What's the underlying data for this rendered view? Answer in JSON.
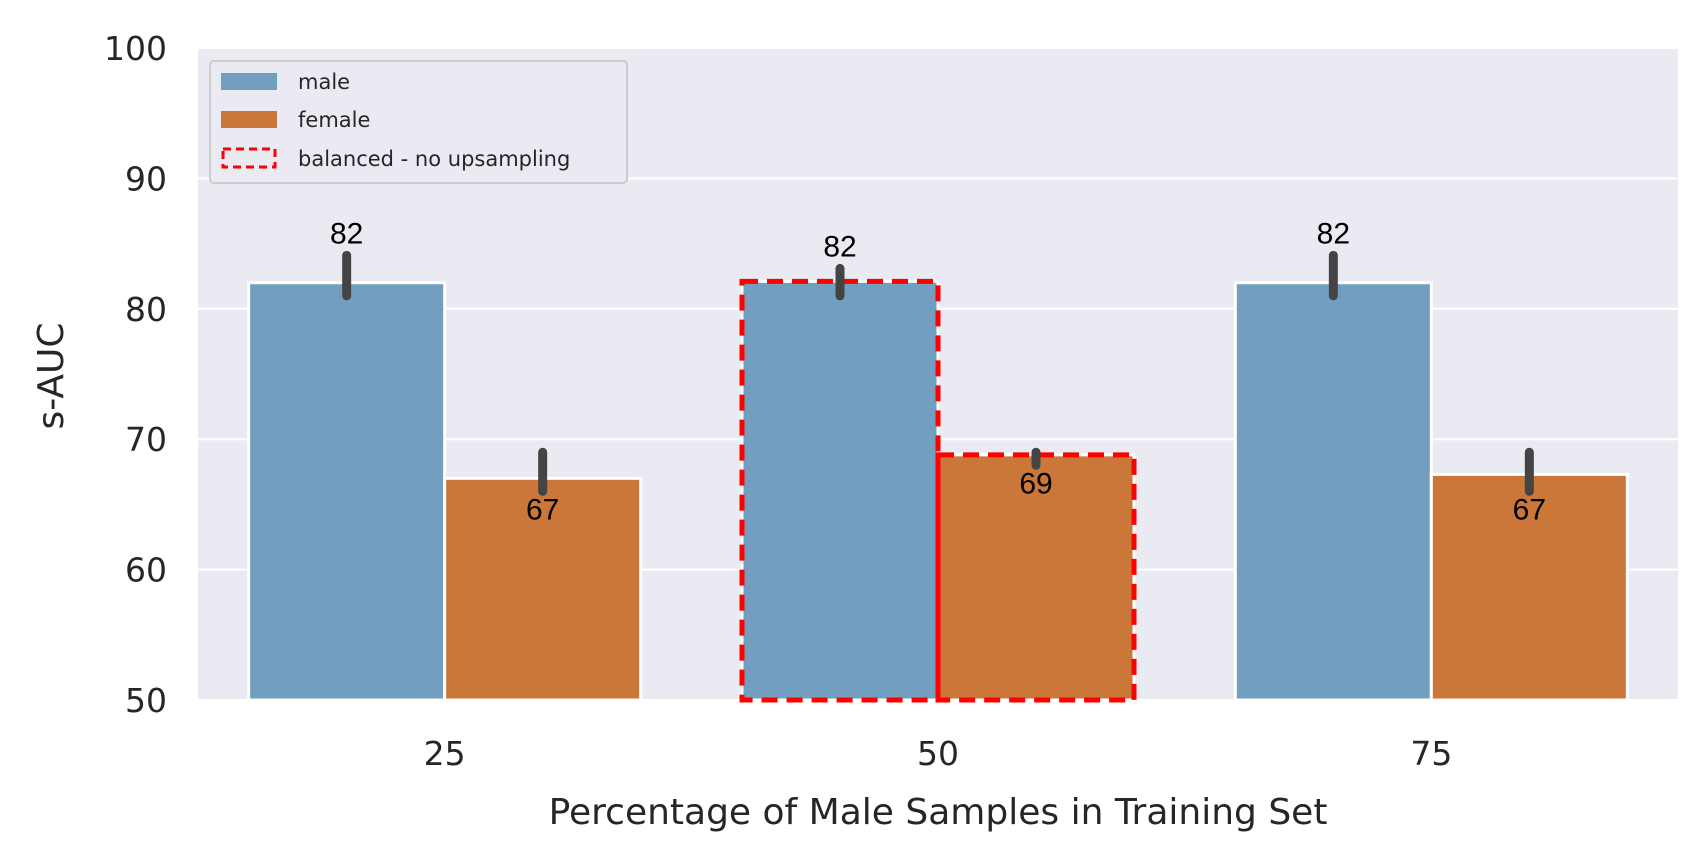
{
  "chart_data": {
    "type": "bar",
    "title": "",
    "xlabel": "Percentage of Male Samples in Training Set",
    "ylabel": "s-AUC",
    "ylim": [
      50,
      100
    ],
    "yticks": [
      "50",
      "60",
      "70",
      "80",
      "90",
      "100"
    ],
    "categories": [
      "25",
      "50",
      "75"
    ],
    "series": [
      {
        "name": "male",
        "color": "#729fbf",
        "values": [
          82,
          82.1,
          82
        ],
        "labels": [
          "82",
          "82",
          "82"
        ],
        "error": [
          [
            81,
            84.1
          ],
          [
            81,
            83.1
          ],
          [
            81,
            84.1
          ]
        ]
      },
      {
        "name": "female",
        "color": "#cb773a",
        "values": [
          67,
          68.8,
          67.3
        ],
        "labels": [
          "67",
          "69",
          "67"
        ],
        "error": [
          [
            66,
            69
          ],
          [
            68,
            69
          ],
          [
            66,
            69
          ]
        ]
      }
    ],
    "highlight": {
      "name": "balanced - no upsampling",
      "category": "50",
      "color": "#ff0000",
      "style": "dashed"
    },
    "grid": true,
    "legend_position": "top-left"
  }
}
